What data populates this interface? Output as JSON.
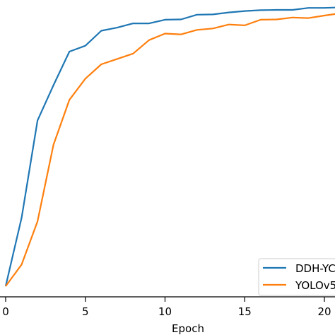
{
  "chart_data": {
    "type": "line",
    "xlabel": "Epoch",
    "ylabel": "",
    "xlim": [
      0,
      21.5
    ],
    "ylim": [
      0.0,
      1.0
    ],
    "x_ticks": [
      0,
      5,
      10,
      15,
      20
    ],
    "x_tick_labels": [
      "0",
      "5",
      "10",
      "15",
      "20"
    ],
    "grid": false,
    "legend": {
      "placement": "bottom-right",
      "entries": [
        "DDH-YC",
        "YOLOv5"
      ]
    },
    "x": [
      0,
      1,
      2,
      3,
      4,
      5,
      6,
      7,
      8,
      9,
      10,
      11,
      12,
      13,
      14,
      15,
      16,
      17,
      18,
      19,
      20,
      21
    ],
    "series": [
      {
        "name": "DDH-YC",
        "color": "#1f77b4",
        "values": [
          0.0,
          0.243,
          0.588,
          0.713,
          0.832,
          0.853,
          0.906,
          0.917,
          0.932,
          0.932,
          0.945,
          0.946,
          0.963,
          0.964,
          0.971,
          0.976,
          0.979,
          0.98,
          0.98,
          0.987,
          0.987,
          0.989
        ]
      },
      {
        "name": "YOLOv5",
        "color": "#ff7f0e",
        "values": [
          0.0,
          0.077,
          0.23,
          0.502,
          0.661,
          0.736,
          0.787,
          0.806,
          0.825,
          0.873,
          0.896,
          0.893,
          0.909,
          0.914,
          0.928,
          0.925,
          0.945,
          0.946,
          0.953,
          0.951,
          0.96,
          0.968
        ]
      }
    ]
  }
}
